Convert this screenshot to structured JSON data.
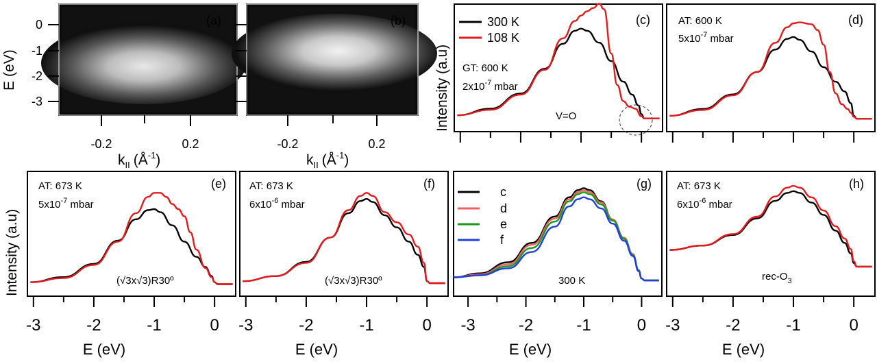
{
  "figure": {
    "title": "",
    "panels_top": [
      {
        "id": "a",
        "label": "(a)"
      },
      {
        "id": "b",
        "label": "(b)"
      }
    ],
    "image_axis": {
      "ylabel_E": "E",
      "ylabel_unit": "(eV)",
      "y_ticks": [
        "0",
        "-1",
        "-2",
        "-3"
      ],
      "x_ticks": [
        "-0.2",
        "0.2"
      ],
      "xlabel_k": "k",
      "xlabel_sub": "II",
      "xlabel_unit_open": "(Å",
      "xlabel_unit_exp": "-1",
      "xlabel_unit_close": ")"
    },
    "intensity_label": "Intensity (a.u)",
    "energy_label": "E (eV)",
    "energy_ticks": [
      "-3",
      "-2",
      "-1",
      "0"
    ]
  },
  "chart_data": [
    {
      "id": "c",
      "type": "line",
      "label": "(c)",
      "xlim": [
        -3.1,
        0.35
      ],
      "legend": [
        {
          "name": "300 K",
          "color": "#000000"
        },
        {
          "name": "108 K",
          "color": "#e41a1c"
        }
      ],
      "annotations": {
        "cond1": "GT: 600 K",
        "cond2_pre": "2x10",
        "cond2_exp": "-7",
        "cond2_post": " mbar",
        "note": "V=O"
      },
      "series": [
        {
          "name": "300 K",
          "color": "#000000",
          "x": [
            -3.05,
            -2.5,
            -2.0,
            -1.6,
            -1.3,
            -1.1,
            -1.0,
            -0.9,
            -0.7,
            -0.5,
            -0.3,
            -0.15,
            -0.05,
            0.0,
            0.05,
            0.3
          ],
          "y": [
            0.05,
            0.11,
            0.25,
            0.48,
            0.71,
            0.83,
            0.85,
            0.83,
            0.72,
            0.55,
            0.36,
            0.24,
            0.14,
            0.06,
            0.02,
            0.02
          ]
        },
        {
          "name": "108 K",
          "color": "#e41a1c",
          "x": [
            -3.05,
            -2.5,
            -2.0,
            -1.6,
            -1.3,
            -1.1,
            -1.0,
            -0.9,
            -0.8,
            -0.7,
            -0.62,
            -0.5,
            -0.4,
            -0.3,
            -0.2,
            -0.1,
            0.0,
            0.05,
            0.3
          ],
          "y": [
            0.05,
            0.1,
            0.24,
            0.47,
            0.76,
            0.92,
            0.97,
            1.01,
            1.04,
            1.08,
            1.03,
            0.62,
            0.33,
            0.18,
            0.13,
            0.11,
            0.04,
            0.02,
            0.02
          ]
        }
      ]
    },
    {
      "id": "d",
      "type": "line",
      "label": "(d)",
      "xlim": [
        -3.1,
        0.35
      ],
      "annotations": {
        "cond1": "AT: 600 K",
        "cond2_pre": "5x10",
        "cond2_exp": "-7",
        "cond2_post": " mbar"
      },
      "series": [
        {
          "name": "300 K",
          "color": "#000000",
          "x": [
            -3.05,
            -2.5,
            -2.0,
            -1.6,
            -1.3,
            -1.1,
            -1.0,
            -0.9,
            -0.7,
            -0.5,
            -0.3,
            -0.15,
            -0.05,
            0.0,
            0.05,
            0.3
          ],
          "y": [
            0.05,
            0.12,
            0.27,
            0.5,
            0.73,
            0.84,
            0.86,
            0.83,
            0.71,
            0.55,
            0.4,
            0.3,
            0.18,
            0.05,
            0.02,
            0.02
          ]
        },
        {
          "name": "108 K",
          "color": "#e41a1c",
          "x": [
            -3.05,
            -2.5,
            -2.0,
            -1.6,
            -1.3,
            -1.1,
            -1.0,
            -0.9,
            -0.7,
            -0.6,
            -0.5,
            -0.4,
            -0.3,
            -0.2,
            -0.1,
            -0.05,
            0.0,
            0.05,
            0.3
          ],
          "y": [
            0.05,
            0.11,
            0.26,
            0.5,
            0.8,
            0.96,
            1.0,
            1.01,
            0.99,
            0.93,
            0.78,
            0.5,
            0.28,
            0.17,
            0.12,
            0.08,
            0.04,
            0.02,
            0.02
          ]
        }
      ]
    },
    {
      "id": "e",
      "type": "line",
      "label": "(e)",
      "xlim": [
        -3.1,
        0.35
      ],
      "annotations": {
        "cond1": "AT: 673 K",
        "cond2_pre": "5x10",
        "cond2_exp": "-7",
        "cond2_post": " mbar",
        "note": "(√3x√3)R30º"
      },
      "series": [
        {
          "name": "300 K",
          "color": "#000000",
          "x": [
            -3.05,
            -2.5,
            -2.0,
            -1.6,
            -1.3,
            -1.1,
            -1.0,
            -0.9,
            -0.7,
            -0.5,
            -0.3,
            -0.15,
            -0.05,
            0.0,
            0.05,
            0.3
          ],
          "y": [
            0.03,
            0.08,
            0.21,
            0.44,
            0.65,
            0.74,
            0.75,
            0.72,
            0.59,
            0.43,
            0.28,
            0.18,
            0.09,
            0.03,
            0.01,
            0.01
          ]
        },
        {
          "name": "108 K",
          "color": "#e41a1c",
          "x": [
            -3.05,
            -2.5,
            -2.0,
            -1.6,
            -1.3,
            -1.1,
            -1.0,
            -0.9,
            -0.8,
            -0.7,
            -0.6,
            -0.5,
            -0.4,
            -0.3,
            -0.15,
            -0.05,
            0.0,
            0.05,
            0.3
          ],
          "y": [
            0.03,
            0.07,
            0.2,
            0.43,
            0.71,
            0.87,
            0.91,
            0.91,
            0.87,
            0.8,
            0.75,
            0.68,
            0.52,
            0.35,
            0.17,
            0.08,
            0.03,
            0.01,
            0.01
          ]
        }
      ]
    },
    {
      "id": "f",
      "type": "line",
      "label": "(f)",
      "xlim": [
        -3.1,
        0.35
      ],
      "annotations": {
        "cond1": "AT: 673 K",
        "cond2_pre": "6x10",
        "cond2_exp": "-6",
        "cond2_post": " mbar",
        "note": "(√3x√3)R30º"
      },
      "series": [
        {
          "name": "300 K",
          "color": "#000000",
          "x": [
            -3.05,
            -2.5,
            -2.0,
            -1.6,
            -1.3,
            -1.1,
            -1.0,
            -0.9,
            -0.7,
            -0.5,
            -0.3,
            -0.15,
            -0.05,
            0.0,
            0.05,
            0.3
          ],
          "y": [
            0.04,
            0.09,
            0.23,
            0.47,
            0.71,
            0.83,
            0.85,
            0.82,
            0.69,
            0.57,
            0.43,
            0.3,
            0.18,
            0.04,
            0.02,
            0.02
          ]
        },
        {
          "name": "108 K",
          "color": "#e41a1c",
          "x": [
            -3.05,
            -2.5,
            -2.0,
            -1.6,
            -1.3,
            -1.1,
            -1.0,
            -0.9,
            -0.7,
            -0.5,
            -0.3,
            -0.15,
            -0.05,
            0.0,
            0.05,
            0.3
          ],
          "y": [
            0.04,
            0.09,
            0.22,
            0.47,
            0.74,
            0.88,
            0.91,
            0.88,
            0.72,
            0.62,
            0.5,
            0.38,
            0.22,
            0.04,
            0.02,
            0.02
          ]
        }
      ]
    },
    {
      "id": "g",
      "type": "line",
      "label": "(g)",
      "xlim": [
        -3.25,
        0.35
      ],
      "annotations": {
        "note": "300 K"
      },
      "legend": [
        {
          "name": "c",
          "color": "#000000"
        },
        {
          "name": "d",
          "color": "#f06060"
        },
        {
          "name": "e",
          "color": "#1a9a1a"
        },
        {
          "name": "f",
          "color": "#1f3fe0"
        }
      ],
      "series": [
        {
          "name": "c",
          "color": "#000000",
          "x": [
            -3.25,
            -2.8,
            -2.3,
            -1.9,
            -1.5,
            -1.25,
            -1.1,
            -1.0,
            -0.9,
            -0.7,
            -0.5,
            -0.3,
            -0.15,
            -0.05,
            0.0,
            0.05,
            0.3
          ],
          "y": [
            0.05,
            0.09,
            0.2,
            0.39,
            0.65,
            0.84,
            0.91,
            0.93,
            0.91,
            0.8,
            0.62,
            0.43,
            0.27,
            0.12,
            0.04,
            0.02,
            0.02
          ]
        },
        {
          "name": "d",
          "color": "#f06060",
          "x": [
            -3.25,
            -2.8,
            -2.3,
            -1.9,
            -1.5,
            -1.25,
            -1.1,
            -1.0,
            -0.9,
            -0.7,
            -0.5,
            -0.3,
            -0.15,
            -0.05,
            0.0,
            0.05,
            0.3
          ],
          "y": [
            0.05,
            0.08,
            0.18,
            0.37,
            0.63,
            0.82,
            0.89,
            0.91,
            0.89,
            0.79,
            0.62,
            0.44,
            0.28,
            0.12,
            0.04,
            0.02,
            0.02
          ]
        },
        {
          "name": "e",
          "color": "#1a9a1a",
          "x": [
            -3.25,
            -2.8,
            -2.3,
            -1.9,
            -1.5,
            -1.25,
            -1.1,
            -1.0,
            -0.9,
            -0.7,
            -0.5,
            -0.3,
            -0.15,
            -0.05,
            0.0,
            0.05,
            0.3
          ],
          "y": [
            0.05,
            0.07,
            0.16,
            0.34,
            0.6,
            0.8,
            0.87,
            0.89,
            0.87,
            0.77,
            0.61,
            0.43,
            0.27,
            0.12,
            0.04,
            0.02,
            0.02
          ]
        },
        {
          "name": "f",
          "color": "#1f3fe0",
          "x": [
            -3.25,
            -2.8,
            -2.3,
            -1.9,
            -1.5,
            -1.25,
            -1.1,
            -1.0,
            -0.9,
            -0.7,
            -0.5,
            -0.3,
            -0.15,
            -0.05,
            0.0,
            0.05,
            0.3
          ],
          "y": [
            0.05,
            0.07,
            0.14,
            0.3,
            0.55,
            0.75,
            0.82,
            0.84,
            0.82,
            0.73,
            0.58,
            0.41,
            0.26,
            0.11,
            0.04,
            0.02,
            0.02
          ]
        }
      ]
    },
    {
      "id": "h",
      "type": "line",
      "label": "(h)",
      "xlim": [
        -3.1,
        0.35
      ],
      "annotations": {
        "cond1": "AT: 673 K",
        "cond2_pre": "6x10",
        "cond2_exp": "-6",
        "cond2_post": " mbar",
        "note_pre": "rec-O",
        "note_sub": "3"
      },
      "series": [
        {
          "name": "300 K",
          "color": "#000000",
          "x": [
            -3.05,
            -2.5,
            -2.0,
            -1.6,
            -1.3,
            -1.1,
            -1.0,
            -0.9,
            -0.7,
            -0.5,
            -0.3,
            -0.15,
            -0.05,
            0.0,
            0.05,
            0.3
          ],
          "y": [
            0.23,
            0.28,
            0.4,
            0.59,
            0.79,
            0.88,
            0.9,
            0.88,
            0.77,
            0.63,
            0.45,
            0.31,
            0.19,
            0.08,
            0.04,
            0.04
          ]
        },
        {
          "name": "108 K",
          "color": "#e41a1c",
          "x": [
            -3.05,
            -2.5,
            -2.0,
            -1.6,
            -1.3,
            -1.1,
            -1.0,
            -0.9,
            -0.7,
            -0.5,
            -0.3,
            -0.15,
            -0.05,
            0.0,
            0.05,
            0.3
          ],
          "y": [
            0.23,
            0.28,
            0.41,
            0.61,
            0.84,
            0.94,
            0.96,
            0.94,
            0.83,
            0.68,
            0.5,
            0.36,
            0.24,
            0.1,
            0.04,
            0.04
          ]
        }
      ]
    }
  ]
}
